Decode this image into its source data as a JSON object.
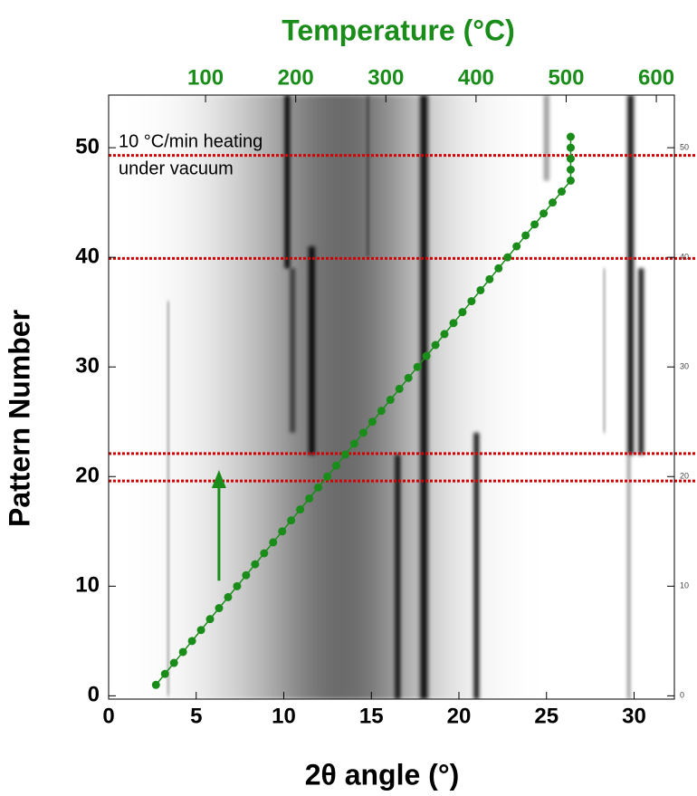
{
  "chart_data": {
    "type": "scatter",
    "x_label": "2θ angle (°)",
    "x2_label": "Temperature (°C)",
    "y_label": "Pattern Number",
    "annotation": [
      "10 °C/min heating",
      "under vacuum"
    ],
    "xlim": [
      0,
      32.3
    ],
    "xticks": [
      0,
      5,
      10,
      15,
      20,
      25,
      30
    ],
    "x2lim": [
      -7.5,
      620
    ],
    "x2ticks": [
      100,
      200,
      300,
      400,
      500,
      600
    ],
    "ylim": [
      -0.3,
      54.8
    ],
    "yticks": [
      0,
      10,
      20,
      30,
      40,
      50
    ],
    "y2lim": [
      -0.3,
      54.8
    ],
    "y2ticks": [
      0,
      10,
      20,
      30,
      40,
      50
    ],
    "series": [
      {
        "axis": "x2",
        "color": "#1a8c1a",
        "x": [
          45,
          55,
          65,
          75,
          85,
          95,
          105,
          115,
          125,
          135,
          145,
          155,
          165,
          175,
          185,
          195,
          205,
          215,
          225,
          235,
          245,
          255,
          265,
          275,
          285,
          295,
          305,
          315,
          325,
          335,
          345,
          355,
          365,
          375,
          385,
          395,
          405,
          415,
          425,
          435,
          445,
          455,
          465,
          475,
          485,
          495,
          505,
          505,
          505,
          505,
          505
        ],
        "values": [
          1,
          2,
          3,
          4,
          5,
          6,
          7,
          8,
          9,
          10,
          11,
          12,
          13,
          14,
          15,
          16,
          17,
          18,
          19,
          20,
          21,
          22,
          23,
          24,
          25,
          26,
          27,
          28,
          29,
          30,
          31,
          32,
          33,
          34,
          35,
          36,
          37,
          38,
          39,
          40,
          41,
          42,
          43,
          44,
          45,
          46,
          47,
          48,
          49,
          50,
          51
        ]
      }
    ],
    "reference_lines": {
      "color": "#d40000",
      "values": [
        49.3,
        39.9,
        22.1,
        19.6
      ]
    },
    "arrow": {
      "color": "#1a8c1a",
      "x": 6.3,
      "from": 10.5,
      "to": 20.6
    },
    "streaks": [
      {
        "two_theta": 12.8,
        "start": -0.3,
        "end": 54.8,
        "width": 9,
        "intensity": 0.5
      },
      {
        "two_theta": 13.6,
        "start": -0.3,
        "end": 54.8,
        "width": 4.5,
        "intensity": 0.3
      },
      {
        "two_theta": 3.4,
        "start": 0,
        "end": 36,
        "width": 0.15,
        "intensity": 0.25
      },
      {
        "two_theta": 10.2,
        "start": 39,
        "end": 54.8,
        "width": 0.3,
        "intensity": 0.95
      },
      {
        "two_theta": 10.5,
        "start": 24,
        "end": 39,
        "width": 0.3,
        "intensity": 0.6
      },
      {
        "two_theta": 11.6,
        "start": 22,
        "end": 41,
        "width": 0.35,
        "intensity": 0.95
      },
      {
        "two_theta": 14.8,
        "start": 40,
        "end": 54.8,
        "width": 0.2,
        "intensity": 0.3
      },
      {
        "two_theta": 16.5,
        "start": -0.3,
        "end": 22,
        "width": 0.3,
        "intensity": 0.9
      },
      {
        "two_theta": 18.0,
        "start": -0.3,
        "end": 54.8,
        "width": 0.4,
        "intensity": 1
      },
      {
        "two_theta": 21.0,
        "start": -0.3,
        "end": 24,
        "width": 0.3,
        "intensity": 0.9
      },
      {
        "two_theta": 25.0,
        "start": 47,
        "end": 54.8,
        "width": 0.3,
        "intensity": 0.4
      },
      {
        "two_theta": 28.3,
        "start": 24,
        "end": 39,
        "width": 0.15,
        "intensity": 0.25
      },
      {
        "two_theta": 29.7,
        "start": -0.3,
        "end": 22,
        "width": 0.25,
        "intensity": 0.3
      },
      {
        "two_theta": 29.8,
        "start": 22,
        "end": 54.8,
        "width": 0.35,
        "intensity": 0.95
      },
      {
        "two_theta": 30.4,
        "start": 22,
        "end": 39,
        "width": 0.3,
        "intensity": 0.9
      }
    ]
  }
}
